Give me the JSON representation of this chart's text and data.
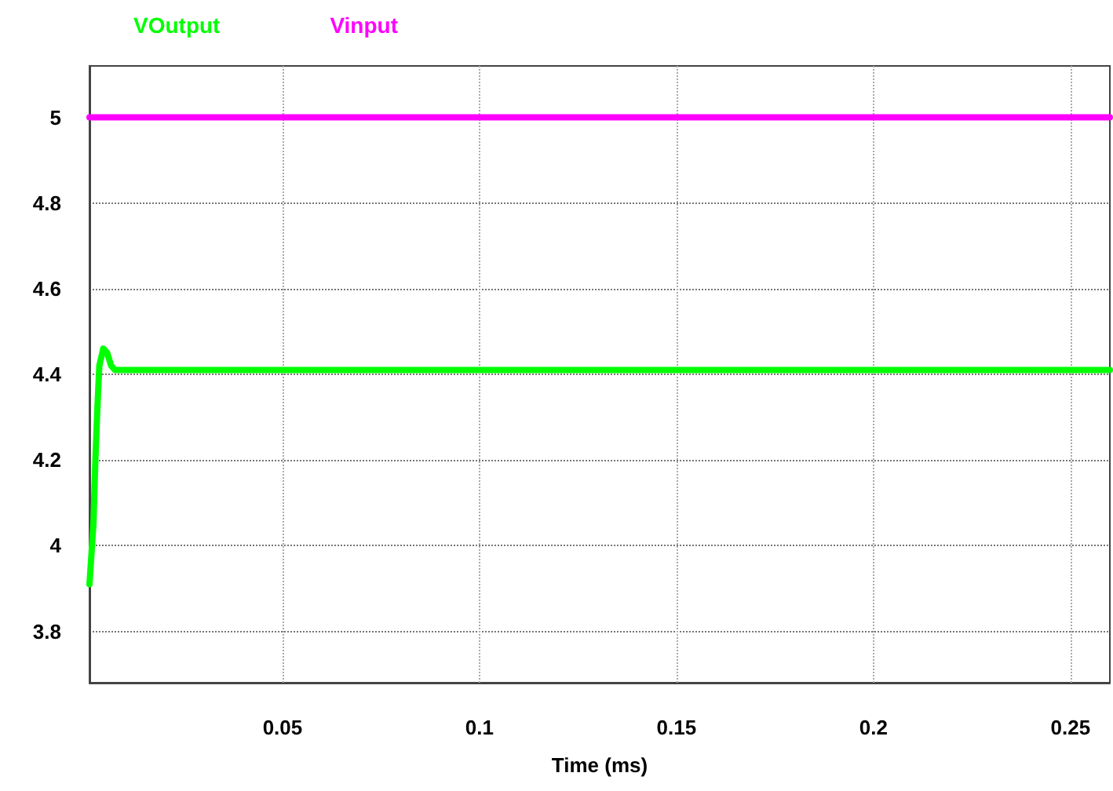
{
  "chart_data": {
    "type": "line",
    "xlabel": "Time (ms)",
    "legend": "top left",
    "grid": true,
    "marker": "none",
    "line_style": "solid",
    "xlim": [
      0.001,
      0.26
    ],
    "xticks": [
      0.05,
      0.1,
      0.15,
      0.2,
      0.25
    ],
    "ylim": [
      3.68,
      5.12
    ],
    "yticks": [
      3.8,
      4,
      4.2,
      4.4,
      4.6,
      4.8,
      5
    ],
    "series": [
      {
        "name": "VOutput",
        "color": "#00ff00",
        "x": [
          0.001,
          0.002,
          0.0025,
          0.003,
          0.0035,
          0.0045,
          0.0055,
          0.0065,
          0.0075,
          0.26
        ],
        "values": [
          3.91,
          4.05,
          4.2,
          4.32,
          4.42,
          4.46,
          4.45,
          4.42,
          4.41,
          4.41
        ]
      },
      {
        "name": "Vinput",
        "color": "#ff00ff",
        "x": [
          0.001,
          0.26
        ],
        "values": [
          5,
          5
        ]
      }
    ]
  }
}
